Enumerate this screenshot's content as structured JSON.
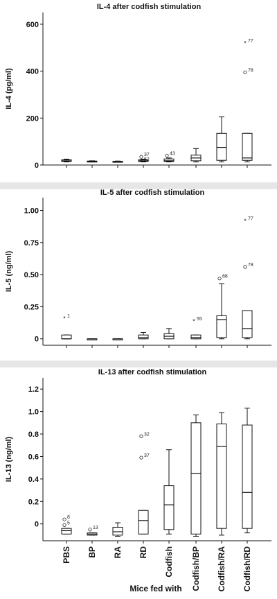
{
  "chart_data": [
    {
      "type": "box",
      "title": "IL-4 after codfish stimulation",
      "ylabel": "IL-4 (pg/ml)",
      "xlabel": "",
      "ylim": [
        0,
        650
      ],
      "yticks": [
        "0",
        "200",
        "400",
        "600"
      ],
      "categories": [
        "PBS",
        "BP",
        "RA",
        "RD",
        "Codfish",
        "Codfish/BP",
        "Codfish/RA",
        "Codfish/RD"
      ],
      "boxes": [
        {
          "whislo": 13,
          "q1": 15,
          "med": 18,
          "q3": 22,
          "whishi": 25
        },
        {
          "whislo": 13,
          "q1": 14,
          "med": 15,
          "q3": 17,
          "whishi": 18
        },
        {
          "whislo": 13,
          "q1": 14,
          "med": 15,
          "q3": 16,
          "whishi": 17
        },
        {
          "whislo": 13,
          "q1": 15,
          "med": 18,
          "q3": 22,
          "whishi": 25
        },
        {
          "whislo": 13,
          "q1": 15,
          "med": 18,
          "q3": 26,
          "whishi": 30
        },
        {
          "whislo": 13,
          "q1": 18,
          "med": 30,
          "q3": 42,
          "whishi": 70
        },
        {
          "whislo": 13,
          "q1": 20,
          "med": 75,
          "q3": 135,
          "whishi": 205
        },
        {
          "whislo": 13,
          "q1": 20,
          "med": 30,
          "q3": 135,
          "whishi": 135
        }
      ],
      "outliers": [
        {
          "cat": 3,
          "y": 35,
          "marker": "o",
          "label": "37"
        },
        {
          "cat": 3,
          "y": 15,
          "marker": "*",
          "label": "52"
        },
        {
          "cat": 4,
          "y": 40,
          "marker": "o",
          "label": "43"
        },
        {
          "cat": 7,
          "y": 520,
          "marker": "*",
          "label": "77"
        },
        {
          "cat": 7,
          "y": 395,
          "marker": "o",
          "label": "78"
        }
      ]
    },
    {
      "type": "box",
      "title": "IL-5 after codfish stimulation",
      "ylabel": "IL-5 (ng/ml)",
      "xlabel": "",
      "ylim": [
        -0.05,
        1.1
      ],
      "yticks": [
        "0",
        "0.25",
        "0.50",
        "0.75",
        "1.00"
      ],
      "categories": [
        "PBS",
        "BP",
        "RA",
        "RD",
        "Codfish",
        "Codfish/BP",
        "Codfish/RA",
        "Codfish/RD"
      ],
      "boxes": [
        {
          "whislo": 0,
          "q1": 0,
          "med": 0,
          "q3": 0.03,
          "whishi": 0.03
        },
        {
          "whislo": 0,
          "q1": 0,
          "med": 0,
          "q3": 0,
          "whishi": 0
        },
        {
          "whislo": 0,
          "q1": 0,
          "med": 0,
          "q3": 0,
          "whishi": 0
        },
        {
          "whislo": 0,
          "q1": 0,
          "med": 0.01,
          "q3": 0.03,
          "whishi": 0.05
        },
        {
          "whislo": 0,
          "q1": 0,
          "med": 0.02,
          "q3": 0.04,
          "whishi": 0.08
        },
        {
          "whislo": 0,
          "q1": 0,
          "med": 0.01,
          "q3": 0.03,
          "whishi": 0.03
        },
        {
          "whislo": 0,
          "q1": 0.01,
          "med": 0.15,
          "q3": 0.18,
          "whishi": 0.43
        },
        {
          "whislo": 0,
          "q1": 0.01,
          "med": 0.08,
          "q3": 0.22,
          "whishi": 0.22
        }
      ],
      "outliers": [
        {
          "cat": 0,
          "y": 0.16,
          "marker": "*",
          "label": "1"
        },
        {
          "cat": 5,
          "y": 0.14,
          "marker": "*",
          "label": "55"
        },
        {
          "cat": 6,
          "y": 0.47,
          "marker": "o",
          "label": "68"
        },
        {
          "cat": 7,
          "y": 0.92,
          "marker": "*",
          "label": "77"
        },
        {
          "cat": 7,
          "y": 0.56,
          "marker": "o",
          "label": "78"
        }
      ]
    },
    {
      "type": "box",
      "title": "IL-13 after codfish stimulation",
      "ylabel": "IL-13 (ng/ml)",
      "xlabel": "Mice fed with",
      "ylim": [
        -0.15,
        1.3
      ],
      "yticks": [
        "0",
        "0.2",
        "0.4",
        "0.6",
        "0.8",
        "1.0",
        "1.2"
      ],
      "categories": [
        "PBS",
        "BP",
        "RA",
        "RD",
        "Codfish",
        "Codfish/BP",
        "Codfish/RA",
        "Codfish/RD"
      ],
      "boxes": [
        {
          "whislo": -0.09,
          "q1": -0.09,
          "med": -0.06,
          "q3": -0.04,
          "whishi": -0.04
        },
        {
          "whislo": -0.1,
          "q1": -0.1,
          "med": -0.09,
          "q3": -0.08,
          "whishi": -0.08
        },
        {
          "whislo": -0.11,
          "q1": -0.1,
          "med": -0.07,
          "q3": -0.03,
          "whishi": 0.01
        },
        {
          "whislo": -0.09,
          "q1": -0.09,
          "med": 0.03,
          "q3": 0.12,
          "whishi": 0.12
        },
        {
          "whislo": -0.09,
          "q1": -0.05,
          "med": 0.17,
          "q3": 0.34,
          "whishi": 0.66
        },
        {
          "whislo": -0.11,
          "q1": -0.09,
          "med": 0.45,
          "q3": 0.9,
          "whishi": 0.97
        },
        {
          "whislo": -0.1,
          "q1": -0.04,
          "med": 0.69,
          "q3": 0.89,
          "whishi": 0.99
        },
        {
          "whislo": -0.08,
          "q1": -0.04,
          "med": 0.28,
          "q3": 0.88,
          "whishi": 1.03
        }
      ],
      "outliers": [
        {
          "cat": 0,
          "y": 0.04,
          "marker": "o",
          "label": "8"
        },
        {
          "cat": 0,
          "y": -0.01,
          "marker": "o",
          "label": "5"
        },
        {
          "cat": 1,
          "y": -0.05,
          "marker": "o",
          "label": "13"
        },
        {
          "cat": 3,
          "y": 0.78,
          "marker": "o",
          "label": "32"
        },
        {
          "cat": 3,
          "y": 0.59,
          "marker": "o",
          "label": "37"
        }
      ]
    }
  ]
}
